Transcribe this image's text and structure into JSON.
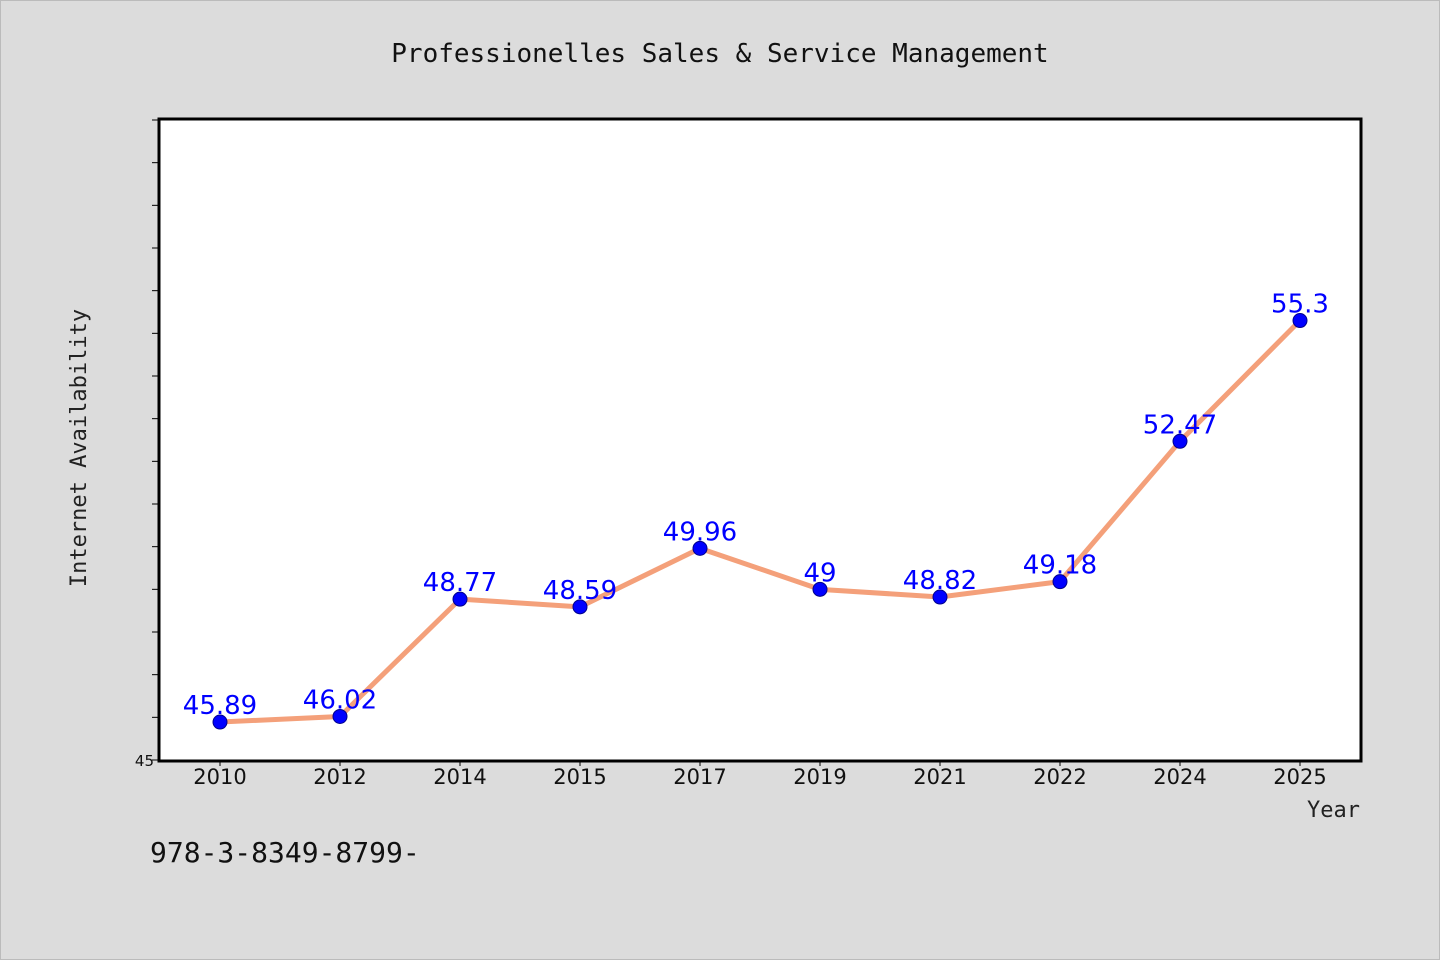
{
  "chart_data": {
    "type": "line",
    "title": "Professionelles Sales & Service Management",
    "xlabel": "Year",
    "ylabel": "Internet Availability",
    "categories": [
      "2010",
      "2012",
      "2014",
      "2015",
      "2017",
      "2019",
      "2021",
      "2022",
      "2024",
      "2025"
    ],
    "series": [
      {
        "values": [
          45.89,
          46.02,
          48.77,
          48.59,
          49.96,
          49,
          48.82,
          49.18,
          52.47,
          55.3
        ],
        "data_labels": [
          "45.89",
          "46.02",
          "48.77",
          "48.59",
          "49.96",
          "49",
          "48.82",
          "49.18",
          "52.47",
          "55.3"
        ],
        "line_color": "#f4a07a",
        "marker_color": "#0000ff"
      }
    ],
    "ylim": [
      45,
      60
    ],
    "ytick_labels": [
      "45"
    ],
    "grid": false,
    "plot_background": "#ffffff",
    "figure_background": "#dcdcdc"
  },
  "footer": {
    "text": "978-3-8349-8799-"
  }
}
